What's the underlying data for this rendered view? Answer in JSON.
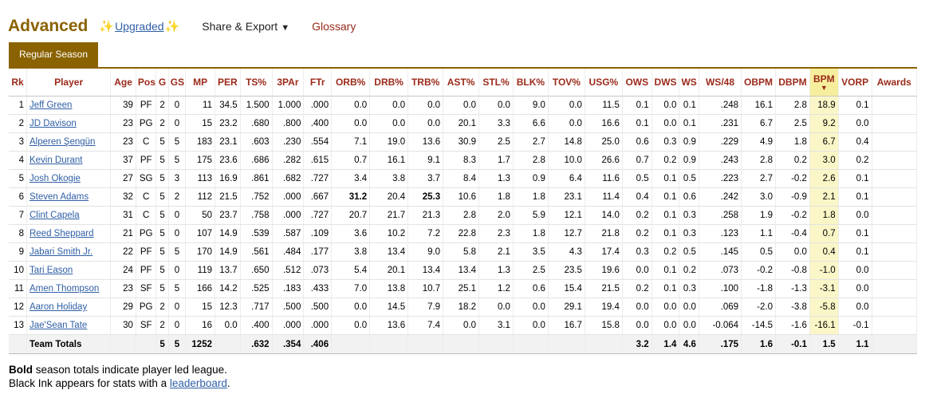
{
  "header": {
    "title": "Advanced",
    "upgraded": "Upgraded",
    "share": "Share & Export",
    "glossary": "Glossary"
  },
  "tab": "Regular Season",
  "columns": [
    "Rk",
    "Player",
    "Age",
    "Pos",
    "G",
    "GS",
    "MP",
    "PER",
    "TS%",
    "3PAr",
    "FTr",
    "ORB%",
    "DRB%",
    "TRB%",
    "AST%",
    "STL%",
    "BLK%",
    "TOV%",
    "USG%",
    "OWS",
    "DWS",
    "WS",
    "WS/48",
    "OBPM",
    "DBPM",
    "BPM",
    "VORP",
    "Awards"
  ],
  "rows": [
    [
      "1",
      "Jeff Green",
      "39",
      "PF",
      "2",
      "0",
      "11",
      "34.5",
      "1.500",
      "1.000",
      ".000",
      "0.0",
      "0.0",
      "0.0",
      "0.0",
      "0.0",
      "9.0",
      "0.0",
      "11.5",
      "0.1",
      "0.0",
      "0.1",
      ".248",
      "16.1",
      "2.8",
      "18.9",
      "0.1",
      ""
    ],
    [
      "2",
      "JD Davison",
      "23",
      "PG",
      "2",
      "0",
      "15",
      "23.2",
      ".680",
      ".800",
      ".400",
      "0.0",
      "0.0",
      "0.0",
      "20.1",
      "3.3",
      "6.6",
      "0.0",
      "16.6",
      "0.1",
      "0.0",
      "0.1",
      ".231",
      "6.7",
      "2.5",
      "9.2",
      "0.0",
      ""
    ],
    [
      "3",
      "Alperen Şengün",
      "23",
      "C",
      "5",
      "5",
      "183",
      "23.1",
      ".603",
      ".230",
      ".554",
      "7.1",
      "19.0",
      "13.6",
      "30.9",
      "2.5",
      "2.7",
      "14.8",
      "25.0",
      "0.6",
      "0.3",
      "0.9",
      ".229",
      "4.9",
      "1.8",
      "6.7",
      "0.4",
      ""
    ],
    [
      "4",
      "Kevin Durant",
      "37",
      "PF",
      "5",
      "5",
      "175",
      "23.6",
      ".686",
      ".282",
      ".615",
      "0.7",
      "16.1",
      "9.1",
      "8.3",
      "1.7",
      "2.8",
      "10.0",
      "26.6",
      "0.7",
      "0.2",
      "0.9",
      ".243",
      "2.8",
      "0.2",
      "3.0",
      "0.2",
      ""
    ],
    [
      "5",
      "Josh Okogie",
      "27",
      "SG",
      "5",
      "3",
      "113",
      "16.9",
      ".861",
      ".682",
      ".727",
      "3.4",
      "3.8",
      "3.7",
      "8.4",
      "1.3",
      "0.9",
      "6.4",
      "11.6",
      "0.5",
      "0.1",
      "0.5",
      ".223",
      "2.7",
      "-0.2",
      "2.6",
      "0.1",
      ""
    ],
    [
      "6",
      "Steven Adams",
      "32",
      "C",
      "5",
      "2",
      "112",
      "21.5",
      ".752",
      ".000",
      ".667",
      "31.2",
      "20.4",
      "25.3",
      "10.6",
      "1.8",
      "1.8",
      "23.1",
      "11.4",
      "0.4",
      "0.1",
      "0.6",
      ".242",
      "3.0",
      "-0.9",
      "2.1",
      "0.1",
      ""
    ],
    [
      "7",
      "Clint Capela",
      "31",
      "C",
      "5",
      "0",
      "50",
      "23.7",
      ".758",
      ".000",
      ".727",
      "20.7",
      "21.7",
      "21.3",
      "2.8",
      "2.0",
      "5.9",
      "12.1",
      "14.0",
      "0.2",
      "0.1",
      "0.3",
      ".258",
      "1.9",
      "-0.2",
      "1.8",
      "0.0",
      ""
    ],
    [
      "8",
      "Reed Sheppard",
      "21",
      "PG",
      "5",
      "0",
      "107",
      "14.9",
      ".539",
      ".587",
      ".109",
      "3.6",
      "10.2",
      "7.2",
      "22.8",
      "2.3",
      "1.8",
      "12.7",
      "21.8",
      "0.2",
      "0.1",
      "0.3",
      ".123",
      "1.1",
      "-0.4",
      "0.7",
      "0.1",
      ""
    ],
    [
      "9",
      "Jabari Smith Jr.",
      "22",
      "PF",
      "5",
      "5",
      "170",
      "14.9",
      ".561",
      ".484",
      ".177",
      "3.8",
      "13.4",
      "9.0",
      "5.8",
      "2.1",
      "3.5",
      "4.3",
      "17.4",
      "0.3",
      "0.2",
      "0.5",
      ".145",
      "0.5",
      "0.0",
      "0.4",
      "0.1",
      ""
    ],
    [
      "10",
      "Tari Eason",
      "24",
      "PF",
      "5",
      "0",
      "119",
      "13.7",
      ".650",
      ".512",
      ".073",
      "5.4",
      "20.1",
      "13.4",
      "13.4",
      "1.3",
      "2.5",
      "23.5",
      "19.6",
      "0.0",
      "0.1",
      "0.2",
      ".073",
      "-0.2",
      "-0.8",
      "-1.0",
      "0.0",
      ""
    ],
    [
      "11",
      "Amen Thompson",
      "23",
      "SF",
      "5",
      "5",
      "166",
      "14.2",
      ".525",
      ".183",
      ".433",
      "7.0",
      "13.8",
      "10.7",
      "25.1",
      "1.2",
      "0.6",
      "15.4",
      "21.5",
      "0.2",
      "0.1",
      "0.3",
      ".100",
      "-1.8",
      "-1.3",
      "-3.1",
      "0.0",
      ""
    ],
    [
      "12",
      "Aaron Holiday",
      "29",
      "PG",
      "2",
      "0",
      "15",
      "12.3",
      ".717",
      ".500",
      ".500",
      "0.0",
      "14.5",
      "7.9",
      "18.2",
      "0.0",
      "0.0",
      "29.1",
      "19.4",
      "0.0",
      "0.0",
      "0.0",
      ".069",
      "-2.0",
      "-3.8",
      "-5.8",
      "0.0",
      ""
    ],
    [
      "13",
      "Jae'Sean Tate",
      "30",
      "SF",
      "2",
      "0",
      "16",
      "0.0",
      ".400",
      ".000",
      ".000",
      "0.0",
      "13.6",
      "7.4",
      "0.0",
      "3.1",
      "0.0",
      "16.7",
      "15.8",
      "0.0",
      "0.0",
      "0.0",
      "-0.064",
      "-14.5",
      "-1.6",
      "-16.1",
      "-0.1",
      ""
    ]
  ],
  "totals": [
    "",
    "Team Totals",
    "",
    "",
    "5",
    "5",
    "1252",
    "",
    ".632",
    ".354",
    ".406",
    "",
    "",
    "",
    "",
    "",
    "",
    "",
    "",
    "3.2",
    "1.4",
    "4.6",
    ".175",
    "1.6",
    "-0.1",
    "1.5",
    "1.1",
    ""
  ],
  "bold_cells": [
    [
      5,
      11
    ],
    [
      5,
      13
    ]
  ],
  "footer": {
    "bold_word": "Bold",
    "line1_rest": " season totals indicate player led league.",
    "line2_text": "Black Ink appears for stats with a ",
    "line2_link": "leaderboard",
    "line2_end": "."
  },
  "colors": {
    "brand": "#8a6200",
    "header_text": "#9a2a1a",
    "link": "#2f5fa6",
    "sorted_col": "#f6ee9c"
  }
}
